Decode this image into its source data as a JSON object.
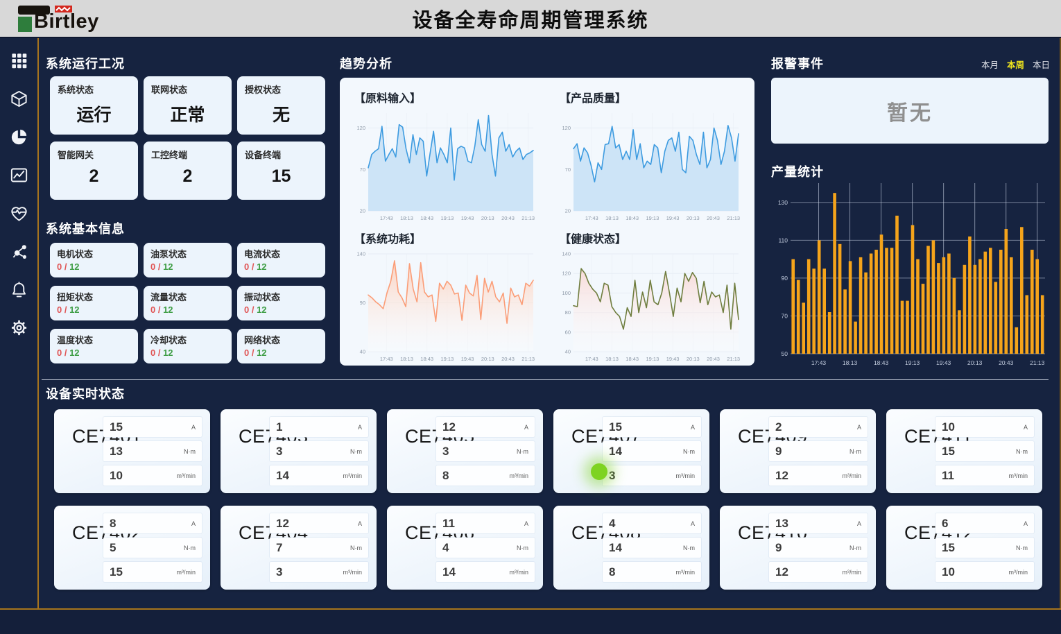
{
  "header": {
    "brand": "Birtley",
    "title": "设备全寿命周期管理系统"
  },
  "sidebar": {
    "icons": [
      {
        "name": "apps-grid-icon"
      },
      {
        "name": "cube-icon"
      },
      {
        "name": "pie-chart-icon"
      },
      {
        "name": "line-chart-icon"
      },
      {
        "name": "health-pulse-icon"
      },
      {
        "name": "molecule-icon"
      },
      {
        "name": "bell-icon"
      },
      {
        "name": "gear-icon"
      }
    ]
  },
  "system_status": {
    "title": "系统运行工况",
    "cards": [
      {
        "label": "系统状态",
        "value": "运行"
      },
      {
        "label": "联网状态",
        "value": "正常"
      },
      {
        "label": "授权状态",
        "value": "无"
      },
      {
        "label": "智能网关",
        "value": "2"
      },
      {
        "label": "工控终端",
        "value": "2"
      },
      {
        "label": "设备终端",
        "value": "15"
      }
    ]
  },
  "system_info": {
    "title": "系统基本信息",
    "cards": [
      {
        "label": "电机状态",
        "current": "0",
        "total": "12"
      },
      {
        "label": "油泵状态",
        "current": "0",
        "total": "12"
      },
      {
        "label": "电流状态",
        "current": "0",
        "total": "12"
      },
      {
        "label": "扭矩状态",
        "current": "0",
        "total": "12"
      },
      {
        "label": "流量状态",
        "current": "0",
        "total": "12"
      },
      {
        "label": "振动状态",
        "current": "0",
        "total": "12"
      },
      {
        "label": "温度状态",
        "current": "0",
        "total": "12"
      },
      {
        "label": "冷却状态",
        "current": "0",
        "total": "12"
      },
      {
        "label": "网络状态",
        "current": "0",
        "total": "12"
      }
    ]
  },
  "trend": {
    "title": "趋势分析"
  },
  "alarm": {
    "title": "报警事件",
    "tabs": [
      {
        "label": "本月",
        "active": false
      },
      {
        "label": "本周",
        "active": true
      },
      {
        "label": "本日",
        "active": false
      }
    ],
    "active_color": "#f2e71d",
    "empty_text": "暂无"
  },
  "production": {
    "title": "产量统计"
  },
  "devices": {
    "title": "设备实时状态",
    "units": [
      "A",
      "N·m",
      "m³/min"
    ],
    "cards": [
      {
        "name": "CE7401",
        "values": [
          "15",
          "13",
          "10"
        ],
        "indicator": false
      },
      {
        "name": "CE7403",
        "values": [
          "1",
          "3",
          "14"
        ],
        "indicator": false
      },
      {
        "name": "CE7405",
        "values": [
          "12",
          "3",
          "8"
        ],
        "indicator": false
      },
      {
        "name": "CE7407",
        "values": [
          "15",
          "14",
          "3"
        ],
        "indicator": true
      },
      {
        "name": "CE7409",
        "values": [
          "2",
          "9",
          "12"
        ],
        "indicator": false
      },
      {
        "name": "CE7411",
        "values": [
          "10",
          "15",
          "11"
        ],
        "indicator": false
      },
      {
        "name": "CE7402",
        "values": [
          "8",
          "5",
          "15"
        ],
        "indicator": false
      },
      {
        "name": "CE7404",
        "values": [
          "12",
          "7",
          "3"
        ],
        "indicator": false
      },
      {
        "name": "CE7406",
        "values": [
          "11",
          "4",
          "14"
        ],
        "indicator": false
      },
      {
        "name": "CE7408",
        "values": [
          "4",
          "14",
          "8"
        ],
        "indicator": false
      },
      {
        "name": "CE7410",
        "values": [
          "13",
          "9",
          "12"
        ],
        "indicator": false
      },
      {
        "name": "CE7412",
        "values": [
          "6",
          "15",
          "10"
        ],
        "indicator": false
      }
    ]
  },
  "chart_data": [
    {
      "id": "raw_input",
      "type": "line",
      "title": "【原料输入】",
      "line_color": "#3d9be0",
      "fill_from": "#cde4f7",
      "fill_to": "#cde4f7",
      "fill_opacity_top": 1,
      "fill_opacity_bottom": 1,
      "ylim": [
        20,
        138
      ],
      "yticks": [
        20,
        70,
        120
      ],
      "x_ticks": [
        "17:43",
        "18:13",
        "18:43",
        "19:13",
        "19:43",
        "20:13",
        "20:43",
        "21:13"
      ],
      "values": [
        72,
        88,
        92,
        95,
        122,
        80,
        88,
        95,
        85,
        124,
        121,
        95,
        78,
        112,
        88,
        108,
        104,
        62,
        90,
        116,
        78,
        96,
        88,
        78,
        120,
        57,
        95,
        98,
        96,
        80,
        78,
        98,
        130,
        100,
        92,
        135,
        88,
        62,
        108,
        115,
        92,
        100,
        85,
        92,
        96,
        82,
        88,
        90,
        93
      ]
    },
    {
      "id": "product_quality",
      "type": "line",
      "title": "【产品质量】",
      "line_color": "#3d9be0",
      "fill_from": "#cde4f7",
      "fill_to": "#cde4f7",
      "fill_opacity_top": 1,
      "fill_opacity_bottom": 1,
      "ylim": [
        20,
        138
      ],
      "yticks": [
        20,
        70,
        120
      ],
      "x_ticks": [
        "17:43",
        "18:13",
        "18:43",
        "19:13",
        "19:43",
        "20:13",
        "20:43",
        "21:13"
      ],
      "values": [
        95,
        101,
        80,
        96,
        90,
        75,
        55,
        78,
        70,
        100,
        101,
        122,
        96,
        100,
        82,
        92,
        82,
        118,
        82,
        101,
        72,
        80,
        76,
        100,
        96,
        66,
        92,
        105,
        108,
        92,
        115,
        70,
        66,
        110,
        105,
        88,
        76,
        115,
        72,
        82,
        120,
        105,
        76,
        92,
        123,
        108,
        80,
        113
      ]
    },
    {
      "id": "system_power",
      "type": "line",
      "title": "【系统功耗】",
      "line_color": "#fb9d77",
      "fill_from": "#fbcdb9",
      "fill_to": "#ffffff",
      "fill_opacity_top": 0.9,
      "fill_opacity_bottom": 0.25,
      "ylim": [
        40,
        140
      ],
      "yticks": [
        40,
        90,
        140
      ],
      "x_ticks": [
        "17:43",
        "18:13",
        "18:43",
        "19:13",
        "19:43",
        "20:13",
        "20:43",
        "21:13"
      ],
      "values": [
        98,
        95,
        91,
        88,
        84,
        100,
        112,
        133,
        101,
        95,
        86,
        130,
        104,
        91,
        131,
        101,
        96,
        98,
        71,
        110,
        104,
        112,
        108,
        99,
        100,
        72,
        108,
        100,
        97,
        118,
        73,
        115,
        101,
        112,
        96,
        91,
        100,
        69,
        105,
        96,
        98,
        88,
        110,
        107,
        113
      ]
    },
    {
      "id": "health_status",
      "type": "line",
      "title": "【健康状态】",
      "line_color": "#6f7d3e",
      "fill_from": "#f9d6d2",
      "fill_to": "#ffffff",
      "fill_opacity_top": 0.85,
      "fill_opacity_bottom": 0.2,
      "ylim": [
        40,
        140
      ],
      "yticks": [
        40,
        60,
        80,
        100,
        120,
        140
      ],
      "x_ticks": [
        "17:43",
        "18:13",
        "18:43",
        "19:13",
        "19:43",
        "20:13",
        "20:43",
        "21:13"
      ],
      "values": [
        87,
        86,
        125,
        120,
        110,
        104,
        100,
        91,
        110,
        108,
        86,
        80,
        76,
        63,
        85,
        76,
        113,
        80,
        101,
        85,
        113,
        91,
        88,
        100,
        122,
        100,
        76,
        105,
        91,
        120,
        112,
        121,
        115,
        90,
        112,
        88,
        101,
        96,
        98,
        80,
        108,
        63,
        110,
        73
      ]
    },
    {
      "id": "production_stats",
      "type": "bar",
      "title": "产量统计",
      "bar_color": "#f5a41b",
      "ylim": [
        50,
        138
      ],
      "yticks": [
        50,
        70,
        90,
        110,
        130
      ],
      "x_ticks": [
        "17:43",
        "18:13",
        "18:43",
        "19:13",
        "19:43",
        "20:13",
        "20:43",
        "21:13"
      ],
      "values": [
        100,
        89,
        77,
        100,
        95,
        110,
        95,
        72,
        135,
        108,
        84,
        99,
        67,
        101,
        93,
        103,
        105,
        113,
        106,
        106,
        123,
        78,
        78,
        118,
        100,
        87,
        107,
        110,
        98,
        101,
        103,
        90,
        73,
        97,
        112,
        97,
        100,
        104,
        106,
        88,
        105,
        116,
        101,
        64,
        117,
        81,
        105,
        100,
        81
      ]
    }
  ]
}
